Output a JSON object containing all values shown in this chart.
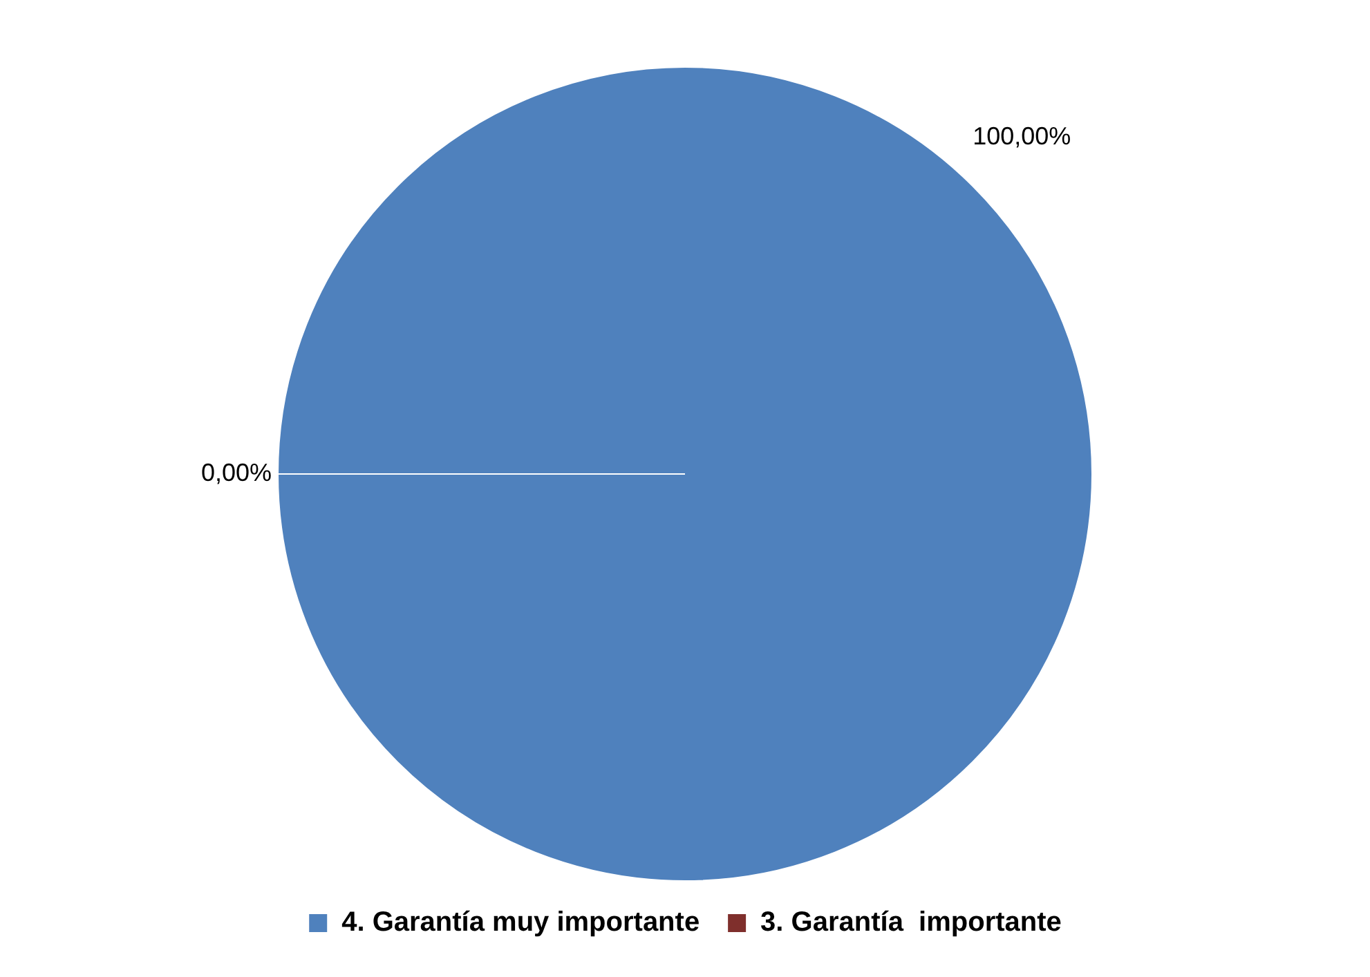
{
  "chart_data": {
    "type": "pie",
    "categories": [
      "4. Garantía muy importante",
      "3. Garantía  importante"
    ],
    "values": [
      100,
      0
    ],
    "colors": [
      "#4f81bd",
      "#7f2f2c"
    ],
    "value_labels": [
      "100,00%",
      "0,00%"
    ],
    "legend": "bottom"
  }
}
